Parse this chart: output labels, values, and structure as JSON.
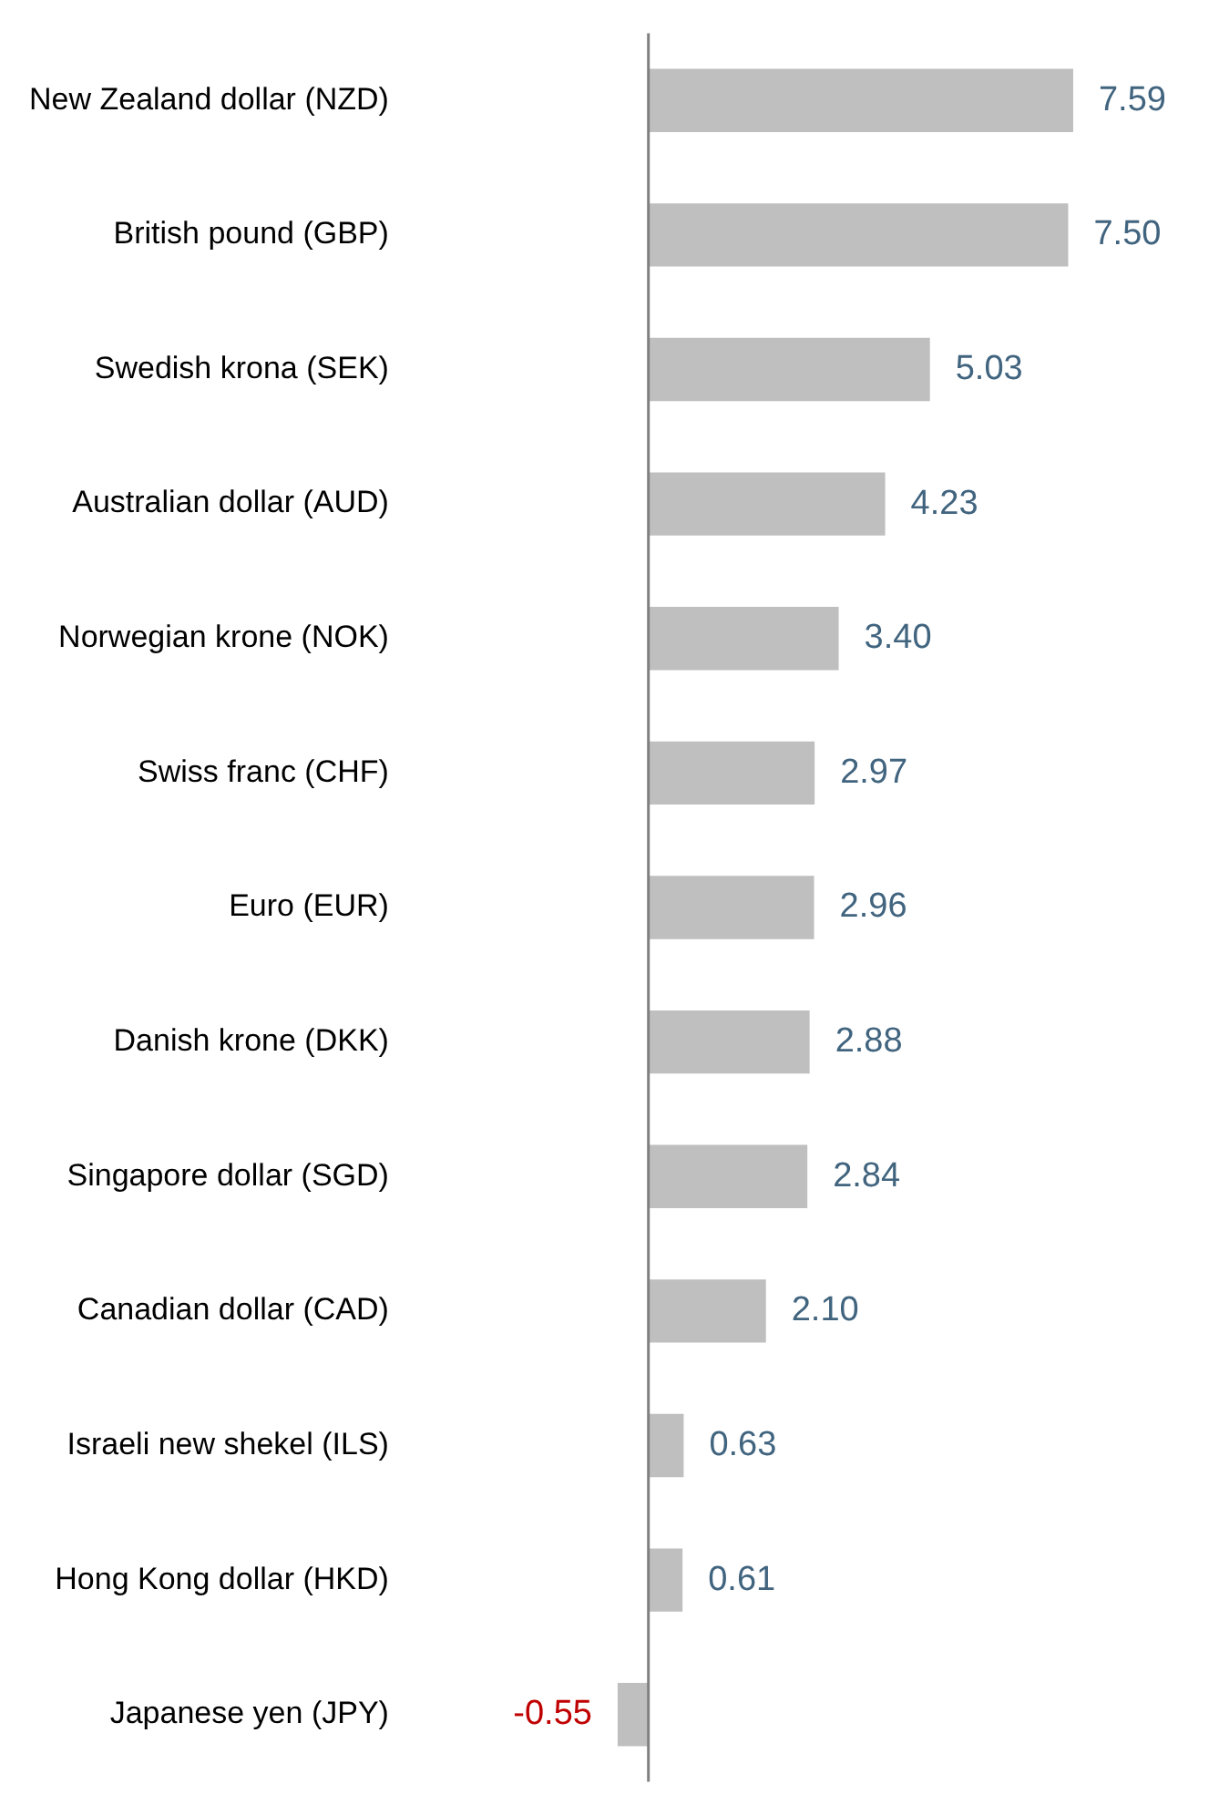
{
  "chart_data": {
    "type": "bar",
    "orientation": "horizontal",
    "categories": [
      "New Zealand dollar (NZD)",
      "British pound (GBP)",
      "Swedish krona (SEK)",
      "Australian dollar (AUD)",
      "Norwegian krone (NOK)",
      "Swiss franc (CHF)",
      "Euro (EUR)",
      "Danish krone (DKK)",
      "Singapore dollar (SGD)",
      "Canadian dollar (CAD)",
      "Israeli new shekel (ILS)",
      "Hong Kong dollar (HKD)",
      "Japanese yen (JPY)"
    ],
    "values": [
      7.59,
      7.5,
      5.03,
      4.23,
      3.4,
      2.97,
      2.96,
      2.88,
      2.84,
      2.1,
      0.63,
      0.61,
      -0.55
    ],
    "value_labels": [
      "7.59",
      "7.50",
      "5.03",
      "4.23",
      "3.40",
      "2.97",
      "2.96",
      "2.88",
      "2.84",
      "2.10",
      "0.63",
      "0.61",
      "-0.55"
    ],
    "color": "#bfbfbf",
    "grid": false,
    "tick_labels": "y"
  }
}
